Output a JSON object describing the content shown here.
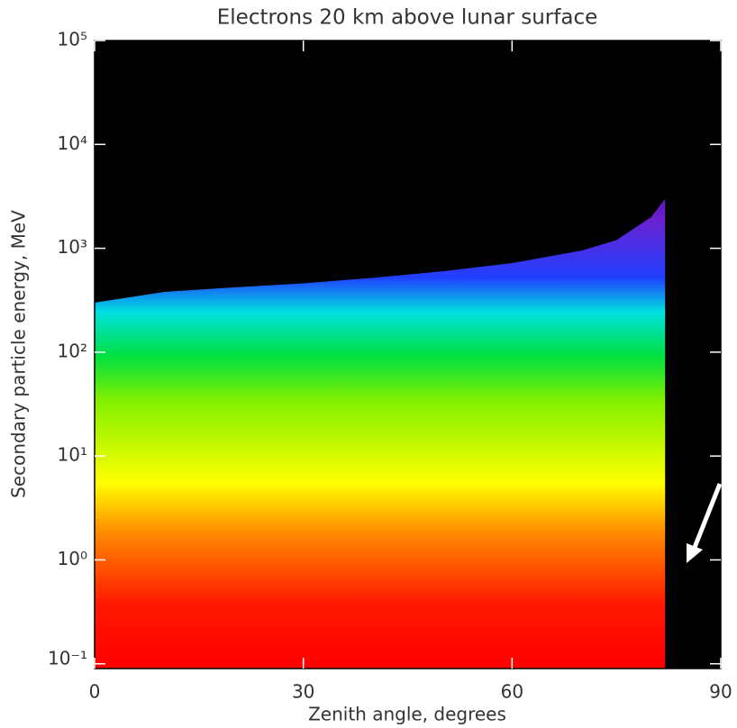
{
  "chart_data": {
    "type": "density",
    "title": "Electrons 20 km above lunar surface",
    "xlabel": "Zenith angle, degrees",
    "ylabel": "Secondary particle energy, MeV",
    "x": [
      0,
      10,
      20,
      30,
      40,
      50,
      60,
      70,
      75,
      80,
      82,
      82,
      90
    ],
    "values": [
      300,
      380,
      420,
      460,
      520,
      600,
      720,
      950,
      1200,
      2000,
      3000,
      null,
      0.75
    ],
    "xlim": [
      0,
      90
    ],
    "xticks": [
      0,
      30,
      60,
      90
    ],
    "ylim": [
      0.09,
      100000
    ],
    "log_y": true,
    "yticks": [
      {
        "value": 0.1,
        "label": "10⁻¹"
      },
      {
        "value": 1,
        "label": "10⁰"
      },
      {
        "value": 10,
        "label": "10¹"
      },
      {
        "value": 100,
        "label": "10²"
      },
      {
        "value": 1000,
        "label": "10³"
      },
      {
        "value": 10000,
        "label": "10⁴"
      },
      {
        "value": 100000,
        "label": "10⁵"
      }
    ]
  }
}
